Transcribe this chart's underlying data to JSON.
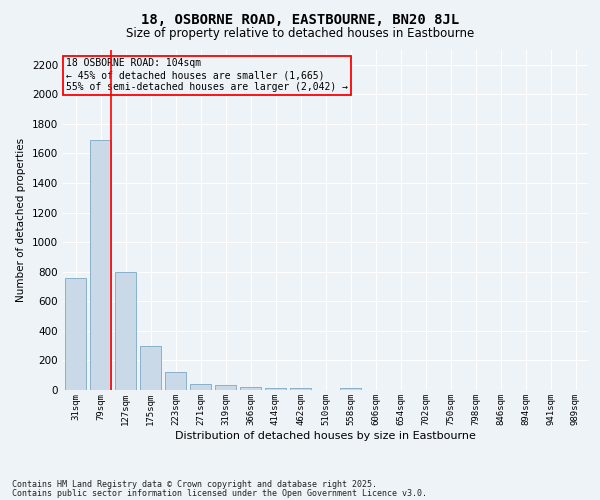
{
  "title": "18, OSBORNE ROAD, EASTBOURNE, BN20 8JL",
  "subtitle": "Size of property relative to detached houses in Eastbourne",
  "xlabel": "Distribution of detached houses by size in Eastbourne",
  "ylabel": "Number of detached properties",
  "categories": [
    "31sqm",
    "79sqm",
    "127sqm",
    "175sqm",
    "223sqm",
    "271sqm",
    "319sqm",
    "366sqm",
    "414sqm",
    "462sqm",
    "510sqm",
    "558sqm",
    "606sqm",
    "654sqm",
    "702sqm",
    "750sqm",
    "798sqm",
    "846sqm",
    "894sqm",
    "941sqm",
    "989sqm"
  ],
  "values": [
    760,
    1690,
    800,
    300,
    120,
    38,
    32,
    22,
    15,
    12,
    0,
    15,
    0,
    0,
    0,
    0,
    0,
    0,
    0,
    0,
    0
  ],
  "bar_color": "#c9d9e8",
  "bar_edgecolor": "#8ab0cc",
  "ylim": [
    0,
    2300
  ],
  "yticks": [
    0,
    200,
    400,
    600,
    800,
    1000,
    1200,
    1400,
    1600,
    1800,
    2000,
    2200
  ],
  "vline_color": "red",
  "vline_x": 1.425,
  "annotation_text": "18 OSBORNE ROAD: 104sqm\n← 45% of detached houses are smaller (1,665)\n55% of semi-detached houses are larger (2,042) →",
  "annotation_box_color": "red",
  "background_color": "#eef3f8",
  "footer_line1": "Contains HM Land Registry data © Crown copyright and database right 2025.",
  "footer_line2": "Contains public sector information licensed under the Open Government Licence v3.0."
}
